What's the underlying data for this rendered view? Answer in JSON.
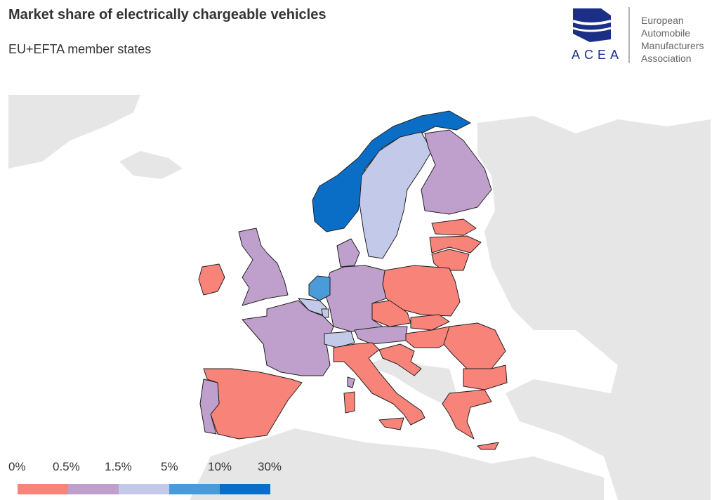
{
  "header": {
    "title": "Market share of electrically chargeable vehicles",
    "subtitle": "EU+EFTA member states"
  },
  "logo": {
    "acronym": "ACEA",
    "org_lines": [
      "European",
      "Automobile",
      "Manufacturers",
      "Association"
    ],
    "color": "#1b2f86"
  },
  "legend": {
    "labels": [
      "0%",
      "0.5%",
      "1.5%",
      "5%",
      "10%",
      "30%"
    ],
    "bins": [
      {
        "range": "0-0.5%",
        "color": "#f88379"
      },
      {
        "range": "0.5-1.5%",
        "color": "#bf9fcc"
      },
      {
        "range": "1.5-5%",
        "color": "#c3c9e8"
      },
      {
        "range": "5-10%",
        "color": "#4b9bd8"
      },
      {
        "range": "10-30%",
        "color": "#0b6ec6"
      }
    ]
  },
  "countries": {
    "norway": 4,
    "sweden": 2,
    "finland": 1,
    "estonia": 0,
    "latvia": 0,
    "lithuania": 0,
    "poland": 0,
    "germany": 1,
    "denmark": 1,
    "netherlands": 3,
    "belgium": 2,
    "luxembourg": 2,
    "france": 1,
    "switzerland": 2,
    "austria": 1,
    "czechia": 0,
    "slovakia": 0,
    "hungary": 0,
    "romania": 0,
    "bulgaria": 0,
    "greece": 0,
    "italy": 0,
    "slovenia-croatia": 0,
    "spain": 0,
    "portugal": 1,
    "ireland": 0,
    "united-kingdom": 1,
    "cyprus": 0
  }
}
